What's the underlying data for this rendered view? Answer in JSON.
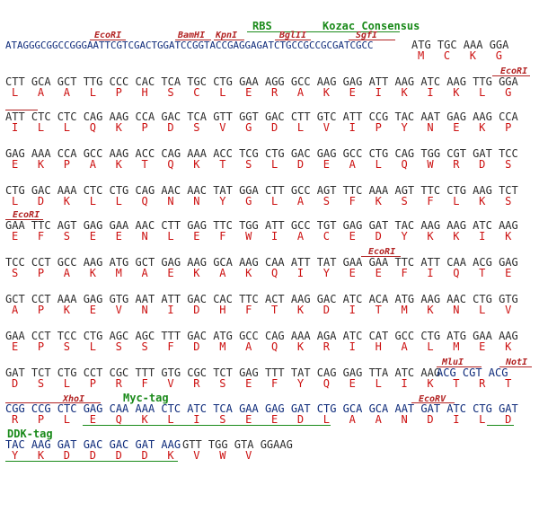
{
  "annotations": {
    "rbs": "RBS",
    "kozac": "Kozac Consensus",
    "ecori": "EcoRI",
    "bamhi": "BamHI",
    "kpni": "KpnI",
    "bglii": "BglII",
    "sgfi": "SgfI",
    "mlui": "MluI",
    "noti": "NotI",
    "xhoi": "XhoI",
    "ecorv": "EcoRV",
    "myc_tag": "Myc-tag",
    "ddk_tag": "DDK-tag"
  },
  "header": {
    "leader": "ATAGGGCGGCCGGGAATTCGTCGACTGGATCCGGTACCGAGGAGATCTGCCGCCGCGATCGCC",
    "codons": "ATG TGC AAA GGA",
    "aa": "M   C   K   G"
  },
  "rows": [
    {
      "dna": "CTT GCA GCT TTG CCC CAC TCA TGC CTG GAA AGG GCC AAG GAG ATT AAG ATC AAG TTG GGA",
      "aa": "L   A   A   L   P   H   S   C   L   E   R   A   K   E   I   K   I   K   L   G"
    },
    {
      "dna": "ATT CTC CTC CAG AAG CCA GAC TCA GTT GGT GAC CTT GTC ATT CCG TAC AAT GAG AAG CCA",
      "aa": "I   L   L   Q   K   P   D   S   V   G   D   L   V   I   P   Y   N   E   K   P"
    },
    {
      "dna": "GAG AAA CCA GCC AAG ACC CAG AAA ACC TCG CTG GAC GAG GCC CTG CAG TGG CGT GAT TCC",
      "aa": "E   K   P   A   K   T   Q   K   T   S   L   D   E   A   L   Q   W   R   D   S"
    },
    {
      "dna": "CTG GAC AAA CTC CTG CAG AAC AAC TAT GGA CTT GCC AGT TTC AAA AGT TTC CTG AAG TCT",
      "aa": "L   D   K   L   L   Q   N   N   Y   G   L   A   S   F   K   S   F   L   K   S"
    },
    {
      "dna": "GAA TTC AGT GAG GAA AAC CTT GAG TTC TGG ATT GCC TGT GAG GAT TAC AAG AAG ATC AAG",
      "aa": "E   F   S   E   E   N   L   E   F   W   I   A   C   E   D   Y   K   K   I   K"
    },
    {
      "dna": "TCC CCT GCC AAG ATG GCT GAG AAG GCA AAG CAA ATT TAT GAA GAA TTC ATT CAA ACG GAG",
      "aa": "S   P   A   K   M   A   E   K   A   K   Q   I   Y   E   E   F   I   Q   T   E"
    },
    {
      "dna": "GCT CCT AAA GAG GTG AAT ATT GAC CAC TTC ACT AAG GAC ATC ACA ATG AAG AAC CTG GTG",
      "aa": "A   P   K   E   V   N   I   D   H   F   T   K   D   I   T   M   K   N   L   V"
    },
    {
      "dna": "GAA CCT TCC CTG AGC AGC TTT GAC ATG GCC CAG AAA AGA ATC CAT GCC CTG ATG GAA AAG",
      "aa": "E   P   S   L   S   S   F   D   M   A   Q   K   R   I   H   A   L   M   E   K"
    },
    {
      "dna": "GAT TCT CTG CCT CGC TTT GTG CGC TCT GAG TTT TAT CAG GAG TTA ATC AAG",
      "dna_tail": "ACG CGT ACG",
      "aa": "D   S   L   P   R   F   V   R   S   E   F   Y   Q   E   L   I   K   T   R   T"
    },
    {
      "dna": "CGG CCG CTC GAG CAA AAA CTC ATC TCA GAA GAG GAT CTG GCA GCA AAT GAT ATC CTG GAT",
      "aa": "R   P   L   E   Q   K   L   I   S   E   E   D   L   A   A   N   D   I   L   D"
    },
    {
      "dna": "TAC AAG GAT GAC GAC GAT AAG",
      "dna_tail": "GTT TGG GTA GGAAG",
      "aa": "Y   K   D   D   D   D   K   V   W   V"
    }
  ]
}
